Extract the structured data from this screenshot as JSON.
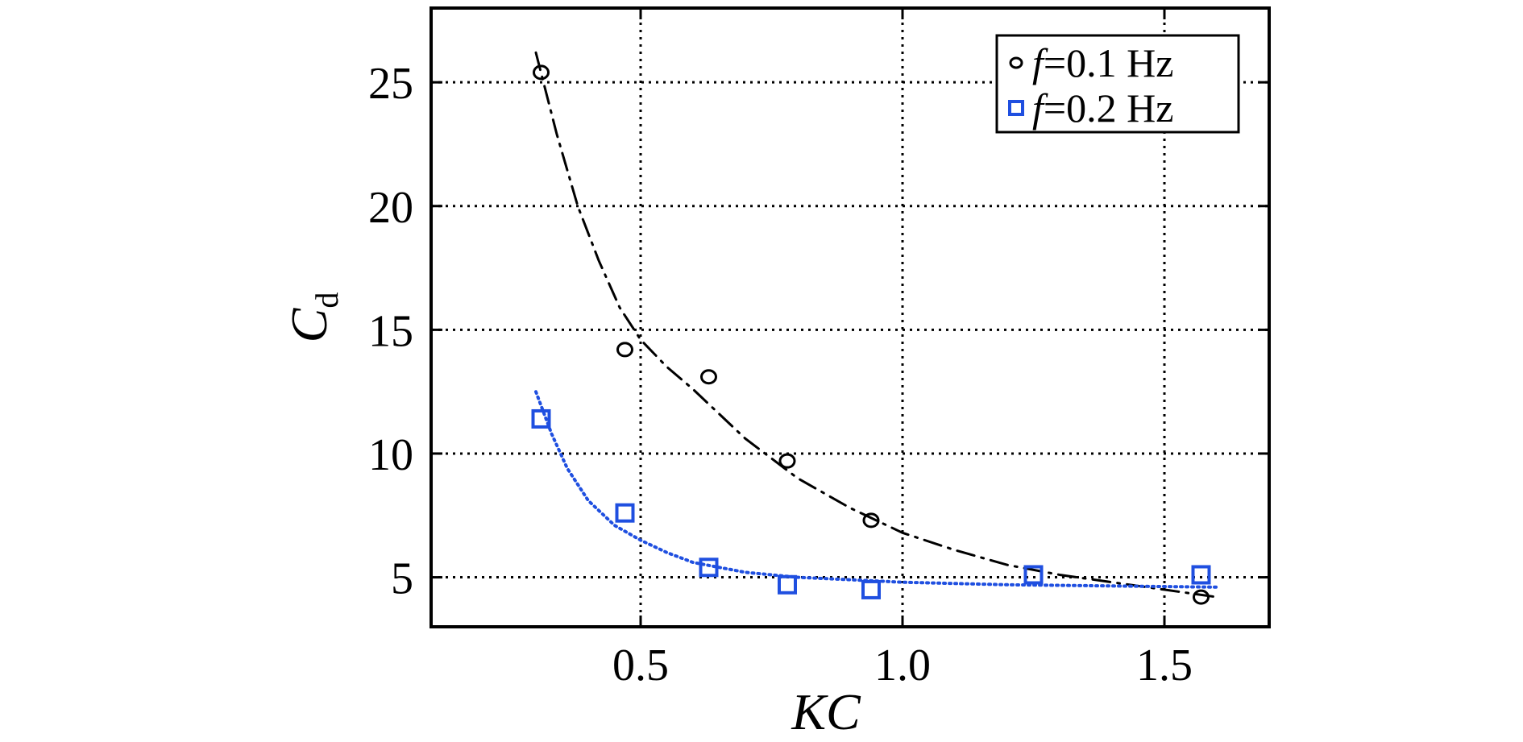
{
  "chart_data": {
    "type": "scatter",
    "xlabel": "KC",
    "ylabel": {
      "main": "C",
      "subscript": "d"
    },
    "xlim": [
      0.1,
      1.7
    ],
    "ylim": [
      3,
      28
    ],
    "xticks": [
      0.5,
      1.0,
      1.5
    ],
    "xtick_labels": [
      "0.5",
      "1.0",
      "1.5"
    ],
    "yticks": [
      5,
      10,
      15,
      20,
      25
    ],
    "ytick_labels": [
      "5",
      "10",
      "15",
      "20",
      "25"
    ],
    "grid": true,
    "legend_position": "top-right",
    "series": [
      {
        "name": {
          "italic": "f",
          "rest": "=0.1 Hz"
        },
        "marker": "circle",
        "color": "#000000",
        "points": [
          [
            0.31,
            25.4
          ],
          [
            0.47,
            14.2
          ],
          [
            0.63,
            13.1
          ],
          [
            0.78,
            9.7
          ],
          [
            0.94,
            7.3
          ],
          [
            1.57,
            4.2
          ]
        ],
        "fit": {
          "style": "dash-dot",
          "x": [
            0.3,
            0.34,
            0.38,
            0.42,
            0.46,
            0.5,
            0.55,
            0.6,
            0.65,
            0.7,
            0.75,
            0.8,
            0.9,
            1.0,
            1.1,
            1.2,
            1.3,
            1.4,
            1.5,
            1.6
          ],
          "y": [
            26.2,
            22.9,
            20.0,
            17.8,
            15.9,
            14.6,
            13.5,
            12.6,
            11.6,
            10.6,
            9.8,
            9.0,
            7.8,
            6.8,
            6.1,
            5.5,
            5.1,
            4.8,
            4.5,
            4.2
          ]
        }
      },
      {
        "name": {
          "italic": "f",
          "rest": "=0.2 Hz"
        },
        "marker": "square",
        "color": "#1f4fe0",
        "points": [
          [
            0.31,
            11.4
          ],
          [
            0.47,
            7.6
          ],
          [
            0.63,
            5.4
          ],
          [
            0.78,
            4.7
          ],
          [
            0.94,
            4.5
          ],
          [
            1.25,
            5.1
          ],
          [
            1.57,
            5.1
          ]
        ],
        "fit": {
          "style": "dotted",
          "x": [
            0.3,
            0.33,
            0.36,
            0.4,
            0.45,
            0.5,
            0.55,
            0.6,
            0.7,
            0.8,
            0.9,
            1.0,
            1.2,
            1.4,
            1.6
          ],
          "y": [
            12.5,
            10.8,
            9.4,
            8.1,
            7.1,
            6.5,
            6.0,
            5.6,
            5.2,
            5.0,
            4.9,
            4.8,
            4.7,
            4.65,
            4.6
          ]
        }
      }
    ]
  }
}
